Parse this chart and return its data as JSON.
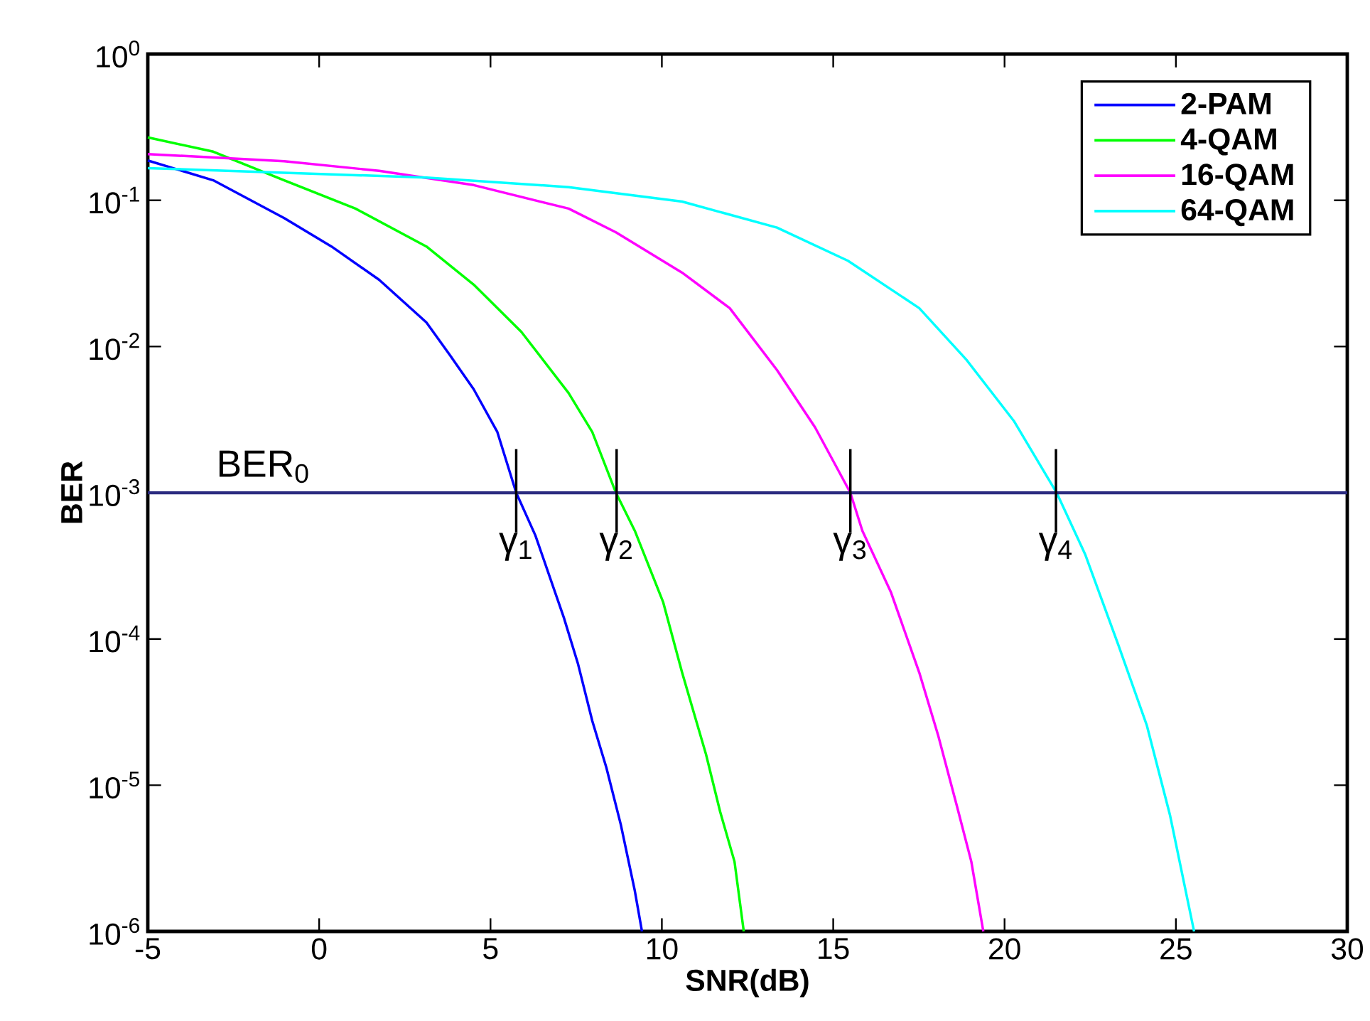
{
  "chart_data": {
    "type": "line",
    "xlabel": "SNR(dB)",
    "ylabel": "BER",
    "log": "y",
    "legend": "top right",
    "xlim": [
      -5,
      30
    ],
    "ylim": [
      1e-06,
      1
    ],
    "xticks": [
      -5,
      0,
      5,
      10,
      15,
      20,
      25,
      30
    ],
    "yticks": [
      {
        "value": 1,
        "label": "10$^{0}$"
      },
      {
        "value": 0.1,
        "label": "10$^{-1}$"
      },
      {
        "value": 0.01,
        "label": "10$^{-2}$"
      },
      {
        "value": 0.001,
        "label": "10$^{-3}$"
      },
      {
        "value": 0.0001,
        "label": "10$^{-4}$"
      },
      {
        "value": 1e-05,
        "label": "10$^{-5}$"
      },
      {
        "value": 1e-06,
        "label": "10$^{-6}$"
      }
    ],
    "series": [
      {
        "name": "2-PAM",
        "color": "#0000ff",
        "x": [
          -5,
          -3.09,
          -1.02,
          0.36,
          1.75,
          3.13,
          3.82,
          4.51,
          5.2,
          5.75,
          6.31,
          7.14,
          7.55,
          7.97,
          8.38,
          8.8,
          9.21,
          9.42
        ],
        "values": [
          0.187,
          0.137,
          0.0755,
          0.0483,
          0.0286,
          0.0146,
          0.0087,
          0.0051,
          0.0026,
          0.001,
          0.00051,
          0.00014,
          6.8e-05,
          2.75e-05,
          1.32e-05,
          5.4e-06,
          1.9e-06,
          1e-06
        ]
      },
      {
        "name": "4-QAM",
        "color": "#00ff00",
        "x": [
          -5,
          -3.09,
          -1.02,
          1.06,
          3.13,
          4.51,
          5.9,
          7.28,
          7.97,
          8.66,
          9.21,
          10.04,
          10.59,
          11.29,
          11.7,
          12.12,
          12.39
        ],
        "values": [
          0.269,
          0.215,
          0.137,
          0.0877,
          0.0483,
          0.0265,
          0.0126,
          0.0048,
          0.0026,
          0.001,
          0.00055,
          0.000178,
          5.9e-05,
          1.62e-05,
          6.6e-06,
          3e-06,
          1e-06
        ]
      },
      {
        "name": "16-QAM",
        "color": "#ff00ff",
        "x": [
          -5,
          -1.02,
          1.75,
          4.51,
          7.28,
          8.66,
          10.59,
          11.98,
          13.36,
          14.47,
          15.5,
          15.85,
          16.68,
          17.51,
          18.06,
          18.61,
          19.03,
          19.38
        ],
        "values": [
          0.207,
          0.185,
          0.159,
          0.127,
          0.0877,
          0.0604,
          0.032,
          0.0183,
          0.0069,
          0.0028,
          0.001,
          0.00055,
          0.00021,
          5.9e-05,
          2.2e-05,
          7.2e-06,
          3e-06,
          1e-06
        ]
      },
      {
        "name": "64-QAM",
        "color": "#00ffff",
        "x": [
          -5,
          3.13,
          7.28,
          10.59,
          13.36,
          15.43,
          17.51,
          18.89,
          20.27,
          21.52,
          22.35,
          23.32,
          24.15,
          24.83,
          25.53
        ],
        "values": [
          0.166,
          0.143,
          0.123,
          0.098,
          0.065,
          0.0386,
          0.0183,
          0.0081,
          0.0031,
          0.001,
          0.00038,
          9.1e-05,
          2.57e-05,
          6.2e-06,
          1e-06
        ]
      }
    ],
    "ref_lines": [
      {
        "axis": "y",
        "value": 0.001,
        "label": "BER$_{0}$",
        "color": "#2b2b80"
      }
    ],
    "annotations": [
      {
        "text": "γ$_{1}$",
        "x": 5.75,
        "y": 0.001
      },
      {
        "text": "γ$_{2}$",
        "x": 8.68,
        "y": 0.001
      },
      {
        "text": "γ$_{3}$",
        "x": 15.5,
        "y": 0.001
      },
      {
        "text": "γ$_{4}$",
        "x": 21.5,
        "y": 0.001
      }
    ]
  }
}
